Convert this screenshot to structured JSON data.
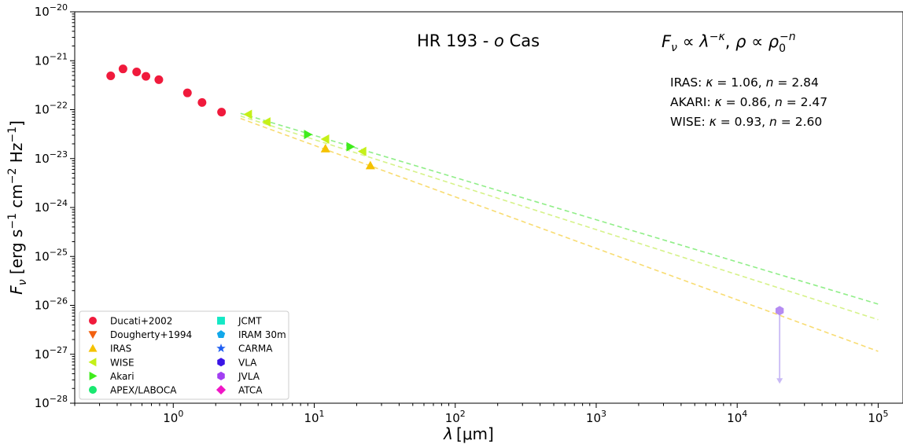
{
  "chart_data": {
    "type": "scatter",
    "title_object": "HR 193 - ",
    "title_star": "o",
    "title_const": " Cas",
    "xlabel_sym": "λ",
    "xlabel_unit": "[μm]",
    "ylabel": "Fν [erg s⁻¹ cm⁻² Hz⁻¹]",
    "x_scale": "log",
    "y_scale": "log",
    "xlim": [
      0.2,
      150000
    ],
    "ylim": [
      1e-28,
      1e-20
    ],
    "x_tick_labels": [
      {
        "value": 1,
        "base": "10",
        "exp": "0"
      },
      {
        "value": 10,
        "base": "10",
        "exp": "1"
      },
      {
        "value": 100,
        "base": "10",
        "exp": "2"
      },
      {
        "value": 1000,
        "base": "10",
        "exp": "3"
      },
      {
        "value": 10000,
        "base": "10",
        "exp": "4"
      },
      {
        "value": 100000,
        "base": "10",
        "exp": "5"
      }
    ],
    "y_tick_labels": [
      {
        "value": 1e-20,
        "base": "10",
        "exp": "−20"
      },
      {
        "value": 1e-21,
        "base": "10",
        "exp": "−21"
      },
      {
        "value": 1e-22,
        "base": "10",
        "exp": "−22"
      },
      {
        "value": 1e-23,
        "base": "10",
        "exp": "−23"
      },
      {
        "value": 1e-24,
        "base": "10",
        "exp": "−24"
      },
      {
        "value": 1e-25,
        "base": "10",
        "exp": "−25"
      },
      {
        "value": 1e-26,
        "base": "10",
        "exp": "−26"
      },
      {
        "value": 1e-27,
        "base": "10",
        "exp": "−27"
      },
      {
        "value": 1e-28,
        "base": "10",
        "exp": "−28"
      }
    ],
    "formula": "Fν ∝ λ^(−κ), ρ ∝ ρ0^(−n)",
    "fits_annotation": [
      {
        "name": "IRAS",
        "kappa": "1.06",
        "n": "2.84"
      },
      {
        "name": "AKARI",
        "kappa": "0.86",
        "n": "2.47"
      },
      {
        "name": "WISE",
        "kappa": "0.93",
        "n": "2.60"
      }
    ],
    "series": [
      {
        "name": "Ducati+2002",
        "marker": "circle",
        "color": "#f01a3c",
        "x": [
          0.36,
          0.44,
          0.55,
          0.64,
          0.79,
          1.26,
          1.6,
          2.2
        ],
        "y": [
          4.9e-22,
          6.8e-22,
          5.9e-22,
          4.8e-22,
          4.1e-22,
          2.2e-22,
          1.4e-22,
          8.9e-23
        ]
      },
      {
        "name": "Dougherty+1994",
        "marker": "triangle-down",
        "color": "#f2600f",
        "x": [],
        "y": []
      },
      {
        "name": "IRAS",
        "marker": "triangle-up",
        "color": "#f5c200",
        "x": [
          12,
          25
        ],
        "y": [
          1.6e-23,
          7.2e-24
        ]
      },
      {
        "name": "WISE",
        "marker": "triangle-left",
        "color": "#c5f018",
        "x": [
          3.4,
          4.6,
          12,
          22
        ],
        "y": [
          8e-23,
          5.6e-23,
          2.5e-23,
          1.4e-23
        ]
      },
      {
        "name": "Akari",
        "marker": "triangle-right",
        "color": "#3fec1b",
        "x": [
          9,
          18
        ],
        "y": [
          3.1e-23,
          1.75e-23
        ]
      },
      {
        "name": "APEX/LABOCA",
        "marker": "circle",
        "color": "#19e870",
        "x": [],
        "y": []
      },
      {
        "name": "JCMT",
        "marker": "square",
        "color": "#14e8c5",
        "x": [],
        "y": []
      },
      {
        "name": "IRAM 30m",
        "marker": "pentagon",
        "color": "#12a8ea",
        "x": [],
        "y": []
      },
      {
        "name": "CARMA",
        "marker": "star",
        "color": "#1f5ef2",
        "x": [],
        "y": []
      },
      {
        "name": "VLA",
        "marker": "hexagon",
        "color": "#3a14e6",
        "x": [],
        "y": []
      },
      {
        "name": "JVLA",
        "marker": "hexagon",
        "color": "#a23ff2",
        "x": [
          20000
        ],
        "y": [
          7.8e-27
        ],
        "upper_limit_to": 2.5e-28,
        "point_color": "#b58cf2",
        "arrow_color": "#c9baf5"
      },
      {
        "name": "ATCA",
        "marker": "diamond",
        "color": "#f016c6",
        "x": [],
        "y": []
      }
    ],
    "fit_lines": [
      {
        "name": "IRAS fit",
        "color": "#f8dc72",
        "x": [
          3.0,
          100000
        ],
        "y": [
          6.6e-23,
          1.15e-27
        ]
      },
      {
        "name": "WISE fit",
        "color": "#d6f28a",
        "x": [
          3.0,
          100000
        ],
        "y": [
          7.4e-23,
          5.1e-27
        ]
      },
      {
        "name": "Akari fit",
        "color": "#90ee88",
        "x": [
          3.0,
          100000
        ],
        "y": [
          8.4e-23,
          1.06e-26
        ]
      }
    ],
    "legend_position": "lower-left"
  }
}
